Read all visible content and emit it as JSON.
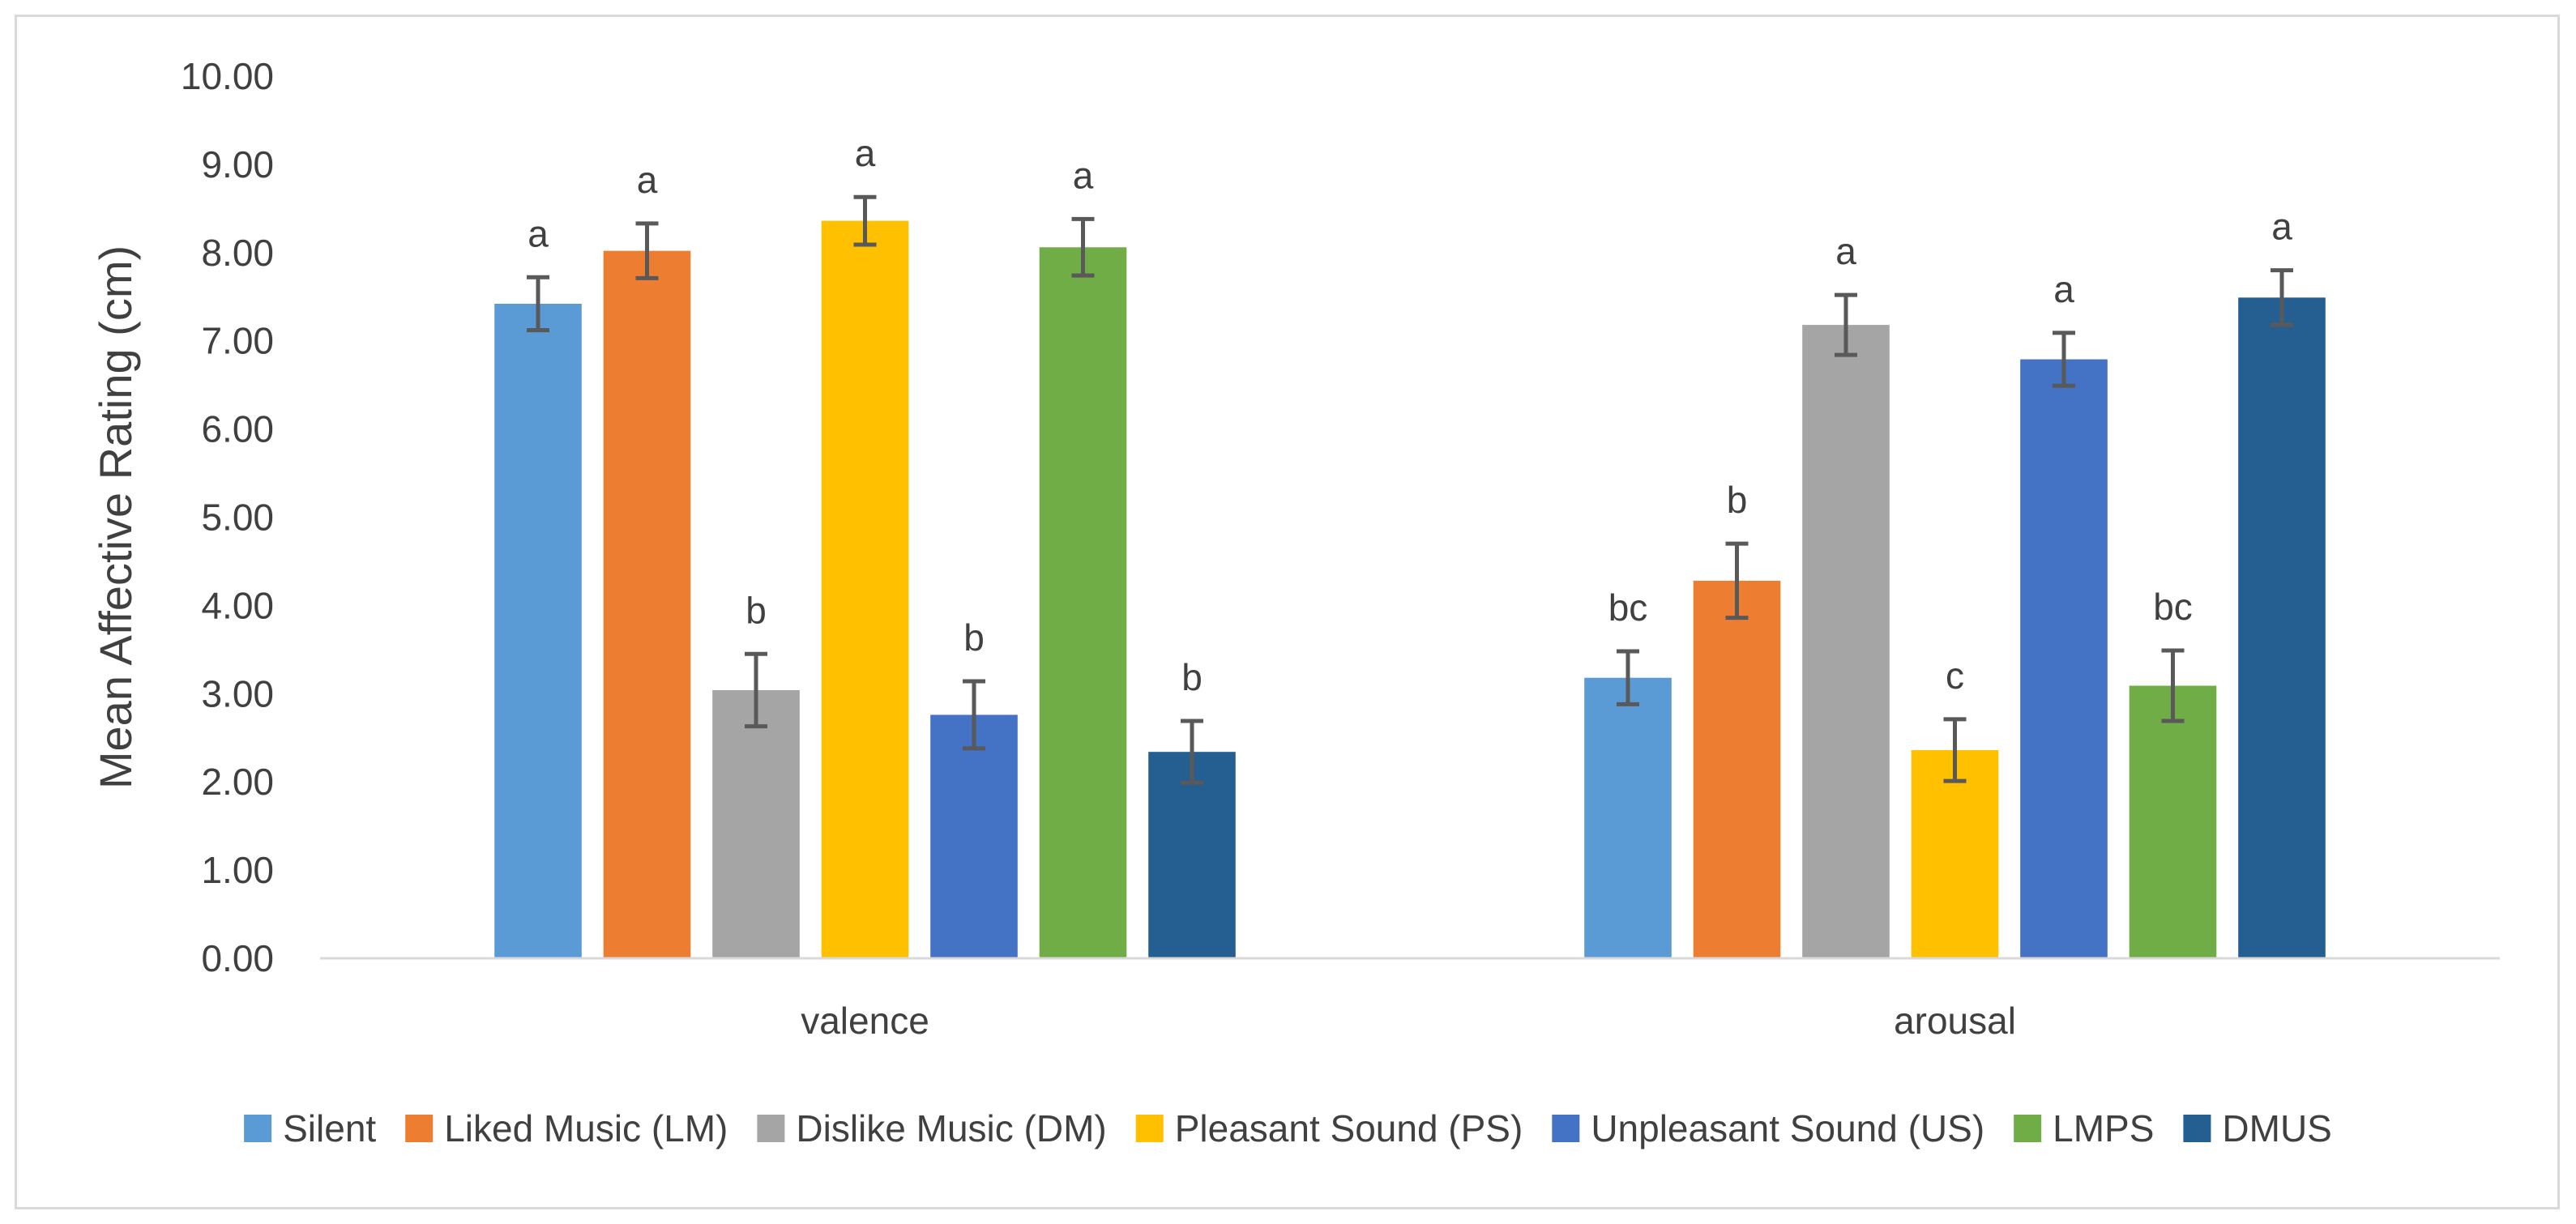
{
  "chart_data": {
    "type": "bar",
    "title": "",
    "xlabel": "",
    "ylabel": "Mean Affective Rating (cm)",
    "ylim": [
      0,
      10
    ],
    "yticks": [
      "0.00",
      "1.00",
      "2.00",
      "3.00",
      "4.00",
      "5.00",
      "6.00",
      "7.00",
      "8.00",
      "9.00",
      "10.00"
    ],
    "categories": [
      "valence",
      "arousal"
    ],
    "grid": false,
    "legend_position": "bottom",
    "series": [
      {
        "name": "Silent",
        "color": "#5b9bd5",
        "values": [
          7.42,
          3.18
        ],
        "errors": [
          0.3,
          0.3
        ],
        "labels": [
          "a",
          "bc"
        ]
      },
      {
        "name": "Liked Music (LM)",
        "color": "#ed7d31",
        "values": [
          8.02,
          4.28
        ],
        "errors": [
          0.31,
          0.42
        ],
        "labels": [
          "a",
          "b"
        ]
      },
      {
        "name": "Dislike Music (DM)",
        "color": "#a5a5a5",
        "values": [
          3.04,
          7.18
        ],
        "errors": [
          0.41,
          0.34
        ],
        "labels": [
          "b",
          "a"
        ]
      },
      {
        "name": "Pleasant Sound (PS)",
        "color": "#ffc000",
        "values": [
          8.36,
          2.36
        ],
        "errors": [
          0.27,
          0.35
        ],
        "labels": [
          "a",
          "c"
        ]
      },
      {
        "name": "Unpleasant Sound (US)",
        "color": "#4472c4",
        "values": [
          2.76,
          6.79
        ],
        "errors": [
          0.38,
          0.3
        ],
        "labels": [
          "b",
          "a"
        ]
      },
      {
        "name": "LMPS",
        "color": "#70ad47",
        "values": [
          8.06,
          3.09
        ],
        "errors": [
          0.32,
          0.4
        ],
        "labels": [
          "a",
          "bc"
        ]
      },
      {
        "name": "DMUS",
        "color": "#255e91",
        "values": [
          2.34,
          7.49
        ],
        "errors": [
          0.35,
          0.31
        ],
        "labels": [
          "b",
          "a"
        ]
      }
    ]
  }
}
